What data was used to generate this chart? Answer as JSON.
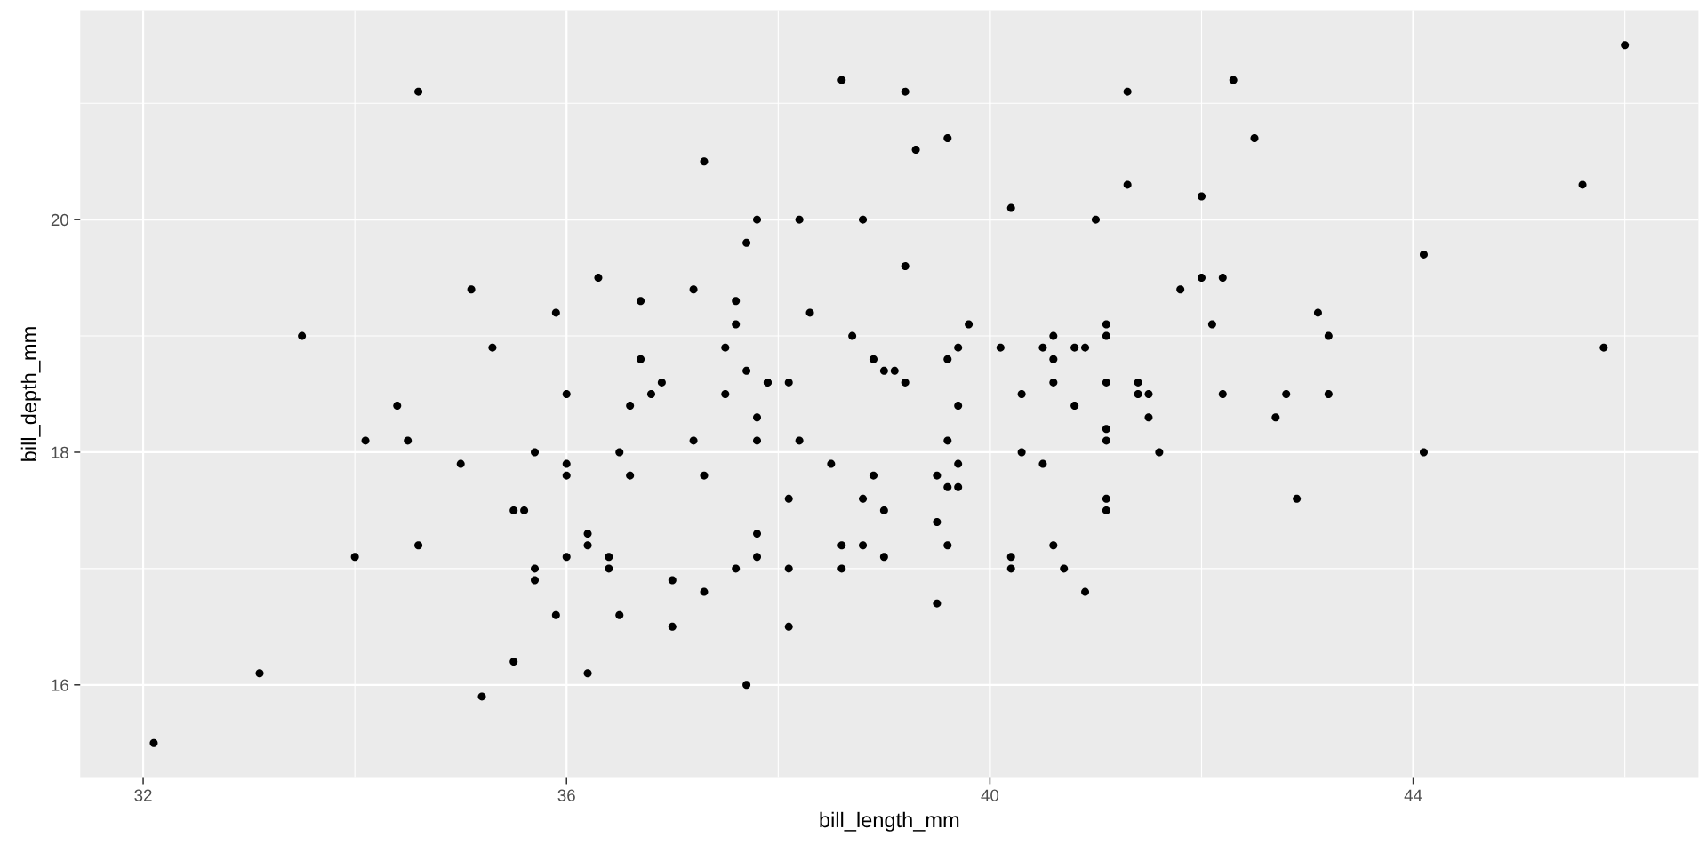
{
  "chart_data": {
    "type": "scatter",
    "xlabel": "bill_length_mm",
    "ylabel": "bill_depth_mm",
    "xlim": [
      31.405,
      46.695
    ],
    "ylim": [
      15.2,
      21.8
    ],
    "xticks": [
      32,
      36,
      40,
      44
    ],
    "yticks": [
      16,
      18,
      20
    ],
    "grid": true,
    "marker": "circle",
    "series": [
      {
        "color": "#000000",
        "x": [
          39.1,
          39.5,
          40.3,
          36.7,
          39.3,
          38.9,
          39.2,
          34.1,
          42,
          37.8,
          37.8,
          41.1,
          38.6,
          34.6,
          36.6,
          38.7,
          42.5,
          34.4,
          46,
          37.8,
          37.7,
          35.9,
          38.2,
          38.8,
          35.3,
          40.6,
          40.5,
          37.9,
          40.5,
          39.5,
          37.2,
          39.5,
          40.9,
          36.4,
          39.2,
          38.8,
          42.2,
          37.6,
          39.8,
          36.5,
          40.8,
          36,
          44.1,
          37,
          39.6,
          41.1,
          37.5,
          36,
          42.3,
          39.6,
          40.1,
          35,
          42,
          34.5,
          41.4,
          39,
          40.6,
          36.5,
          37.6,
          35.7,
          41.3,
          37.6,
          41.1,
          36.4,
          41.6,
          35.5,
          41.1,
          35.9,
          41.8,
          33.5,
          39.7,
          39.6,
          45.8,
          35.5,
          42.8,
          40.9,
          37.2,
          36.2,
          42.1,
          34.6,
          42.9,
          36.7,
          35.1,
          37.3,
          41.3,
          36.3,
          36.9,
          38.3,
          38.9,
          35.7,
          41.1,
          34,
          39.6,
          36.2,
          40.8,
          38.1,
          40.3,
          33.1,
          43.2,
          41,
          37.7,
          37.8,
          37.9,
          39.7,
          38.6,
          38.2,
          38.1,
          43.2,
          38.1,
          45.6,
          39.7,
          42.2,
          39.6,
          42.7,
          38.6,
          37.3,
          35.7,
          41.1,
          36.2,
          37.7,
          40.2,
          41.4,
          35.2,
          40.6,
          38.8,
          41.5,
          39,
          44.1,
          38.5,
          43.1,
          36.8,
          37.5,
          38.1,
          41.1,
          35.6,
          40.2,
          37,
          39.7,
          40.2,
          40.6,
          32.1,
          40.7,
          37.3,
          39,
          39.2,
          36.6,
          36,
          37.8,
          36,
          41.5
        ],
        "values": [
          18.7,
          17.4,
          18,
          19.3,
          20.6,
          17.8,
          19.6,
          18.1,
          20.2,
          17.1,
          17.3,
          17.6,
          21.2,
          21.1,
          17.8,
          19,
          20.7,
          18.4,
          21.5,
          18.3,
          18.7,
          19.2,
          18.1,
          17.2,
          18.9,
          18.6,
          17.9,
          18.6,
          18.9,
          16.7,
          18.1,
          17.8,
          18.9,
          17,
          21.1,
          20,
          18.5,
          19.3,
          19.1,
          18,
          18.4,
          18.5,
          19.7,
          16.9,
          18.8,
          19,
          18.9,
          17.9,
          21.2,
          17.7,
          18.9,
          17.9,
          19.5,
          18.1,
          18.6,
          17.5,
          18.8,
          16.6,
          19.1,
          16.9,
          21.1,
          17,
          18.2,
          17.1,
          18,
          16.2,
          19.1,
          16.6,
          19.4,
          19,
          18.4,
          17.2,
          18.9,
          17.5,
          18.5,
          16.8,
          19.4,
          16.1,
          19.1,
          17.2,
          17.6,
          18.8,
          19.4,
          17.8,
          20.3,
          19.5,
          18.6,
          19.2,
          18.8,
          18,
          18.1,
          17.1,
          18.1,
          17.3,
          18.9,
          18.6,
          18.5,
          16.1,
          18.5,
          20,
          16,
          20,
          18.6,
          18.9,
          17.2,
          20,
          17,
          19,
          16.5,
          20.3,
          17.7,
          19.5,
          20.7,
          18.3,
          17,
          20.5,
          17,
          18.6,
          17.2,
          19.8,
          17,
          18.5,
          15.9,
          19,
          17.6,
          18.3,
          17.1,
          18,
          17.9,
          19.2,
          18.5,
          18.5,
          17.6,
          17.5,
          17.5,
          20.1,
          16.5,
          17.9,
          17.1,
          17.2,
          15.5,
          17,
          16.8,
          18.7,
          18.6,
          18.4,
          17.8,
          18.1,
          17.1,
          18.5
        ]
      }
    ]
  }
}
